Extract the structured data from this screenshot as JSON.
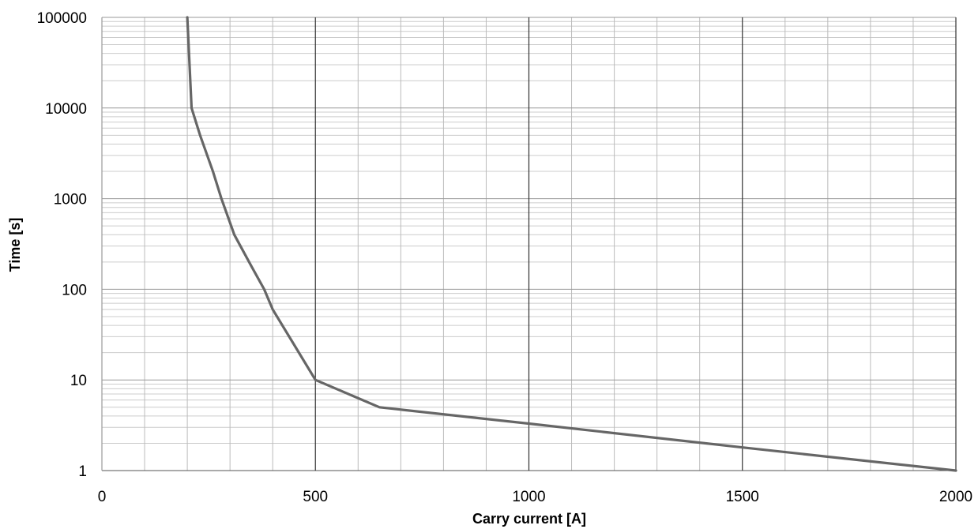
{
  "chart_data": {
    "type": "line",
    "title": "",
    "xlabel": "Carry current [A]",
    "ylabel": "Time [s]",
    "x_scale": "linear",
    "y_scale": "log",
    "xlim": [
      0,
      2000
    ],
    "ylim": [
      1,
      100000
    ],
    "x_ticks": [
      0,
      500,
      1000,
      1500,
      2000
    ],
    "x_tick_labels": [
      "0",
      "500",
      "1000",
      "1500",
      "2000"
    ],
    "y_ticks": [
      1,
      10,
      100,
      1000,
      10000,
      100000
    ],
    "y_tick_labels": [
      "1",
      "10",
      "100",
      "1000",
      "10000",
      "100000"
    ],
    "grid": true,
    "legend": "none",
    "series": [
      {
        "color": "#666666",
        "x": [
          200,
          210,
          230,
          260,
          280,
          310,
          350,
          380,
          400,
          500,
          650,
          1000,
          1500,
          2000
        ],
        "y": [
          100000,
          10000,
          5000,
          2000,
          1000,
          400,
          180,
          100,
          60,
          10,
          5,
          3.3,
          1.8,
          1
        ]
      }
    ]
  }
}
